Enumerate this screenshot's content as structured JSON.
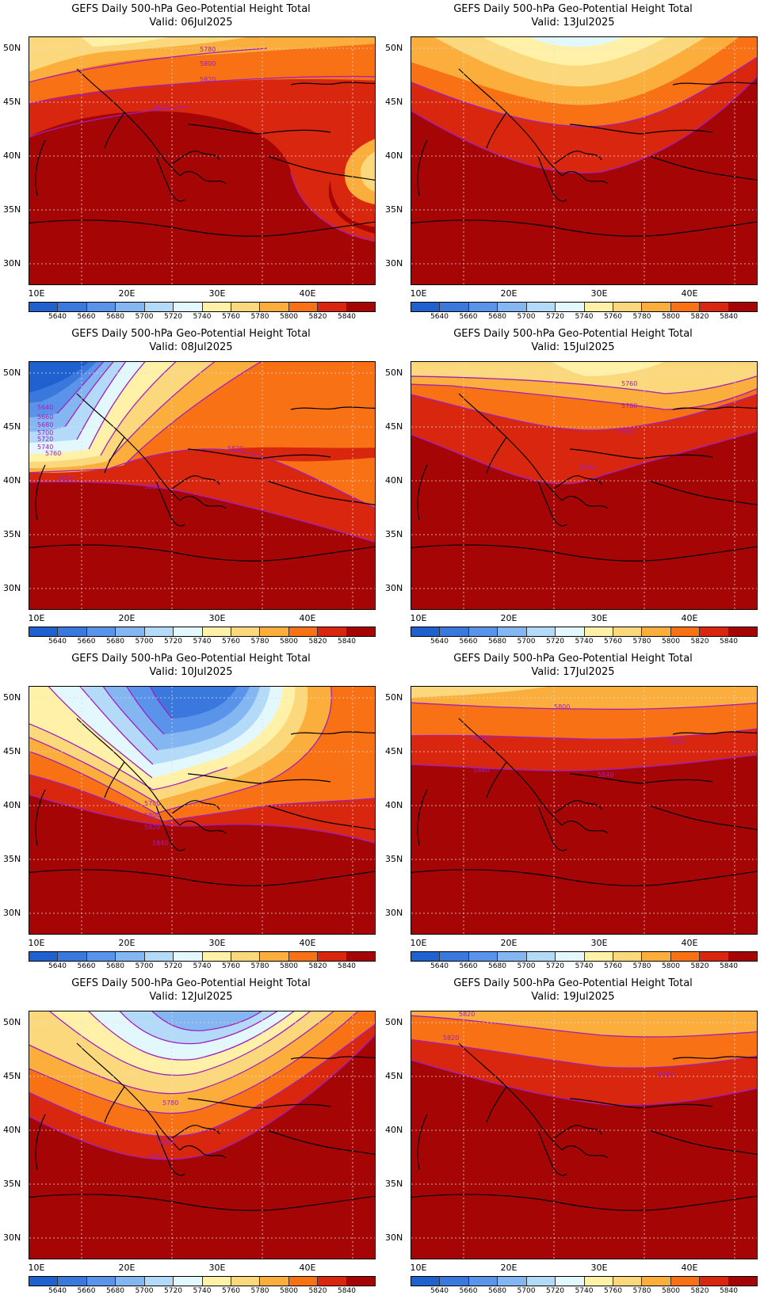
{
  "panels": [
    {
      "title": "GEFS Daily 500-hPa Geo-Potential Height Total",
      "valid": "Valid:  06Jul2025",
      "contour_labels": [
        "5780",
        "5800",
        "5820",
        "5820"
      ]
    },
    {
      "title": "GEFS Daily 500-hPa Geo-Potential Height Total",
      "valid": "Valid:  13Jul2025",
      "contour_labels": []
    },
    {
      "title": "GEFS Daily 500-hPa Geo-Potential Height Total",
      "valid": "Valid:  08Jul2025",
      "contour_labels": [
        "5640",
        "5660",
        "5680",
        "5700",
        "5720",
        "5740",
        "5760",
        "5820",
        "5820",
        "5800"
      ]
    },
    {
      "title": "GEFS Daily 500-hPa Geo-Potential Height Total",
      "valid": "Valid:  15Jul2025",
      "contour_labels": [
        "5760",
        "5780",
        "5800",
        "5820"
      ]
    },
    {
      "title": "GEFS Daily 500-hPa Geo-Potential Height Total",
      "valid": "Valid:  10Jul2025",
      "contour_labels": [
        "5780",
        "5800",
        "5820",
        "5840"
      ]
    },
    {
      "title": "GEFS Daily 500-hPa Geo-Potential Height Total",
      "valid": "Valid:  17Jul2025",
      "contour_labels": [
        "5800",
        "5820",
        "5820",
        "5840",
        "5840"
      ]
    },
    {
      "title": "GEFS Daily 500-hPa Geo-Potential Height Total",
      "valid": "Valid:  12Jul2025",
      "contour_labels": [
        "5780",
        "5800",
        "5820"
      ]
    },
    {
      "title": "GEFS Daily 500-hPa Geo-Potential Height Total",
      "valid": "Valid:  19Jul2025",
      "contour_labels": [
        "5820",
        "5820",
        "5840"
      ]
    }
  ],
  "lat_labels": [
    "50N",
    "45N",
    "40N",
    "35N",
    "30N"
  ],
  "lon_labels": [
    "10E",
    "20E",
    "30E",
    "40E"
  ],
  "colorbar": {
    "labels": [
      "5640",
      "5660",
      "5680",
      "5700",
      "5720",
      "5740",
      "5760",
      "5780",
      "5800",
      "5820",
      "5840"
    ],
    "colors": [
      "#1f62cf",
      "#3a78de",
      "#5a94ea",
      "#84b6f2",
      "#b4dafa",
      "#e2f8fc",
      "#fff2a8",
      "#fcd87c",
      "#fbae3c",
      "#f87114",
      "#d9260f",
      "#a50505"
    ]
  },
  "contour_color": "#a020c0"
}
